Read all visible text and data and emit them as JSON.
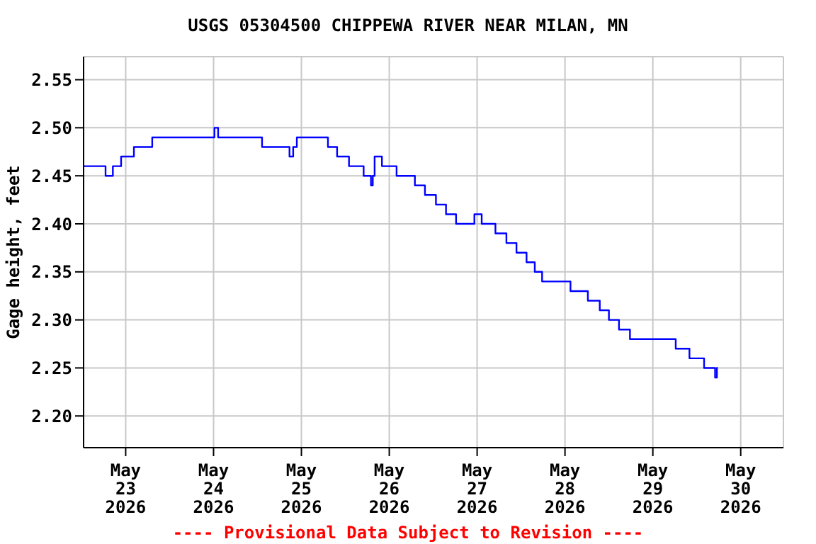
{
  "chart_data": {
    "type": "step",
    "title": "USGS 05304500 CHIPPEWA RIVER NEAR MILAN, MN",
    "ylabel": "Gage height, feet",
    "annotations": [
      "---- Provisional Data Subject to Revision ----"
    ],
    "x": [
      "2026-05-22T12:30",
      "2026-05-22T18:30",
      "2026-05-22T20:30",
      "2026-05-22T22:45",
      "2026-05-23T02:15",
      "2026-05-23T07:15",
      "2026-05-24T00:15",
      "2026-05-24T01:15",
      "2026-05-24T13:15",
      "2026-05-24T20:45",
      "2026-05-24T21:45",
      "2026-05-24T22:45",
      "2026-05-25T07:15",
      "2026-05-25T09:45",
      "2026-05-25T13:00",
      "2026-05-25T17:00",
      "2026-05-25T19:00",
      "2026-05-25T19:30",
      "2026-05-25T20:00",
      "2026-05-25T22:00",
      "2026-05-26T02:00",
      "2026-05-26T07:00",
      "2026-05-26T09:45",
      "2026-05-26T12:45",
      "2026-05-26T15:30",
      "2026-05-26T18:15",
      "2026-05-26T23:15",
      "2026-05-27T01:15",
      "2026-05-27T05:00",
      "2026-05-27T08:00",
      "2026-05-27T10:45",
      "2026-05-27T13:30",
      "2026-05-27T15:45",
      "2026-05-27T17:45",
      "2026-05-28T01:30",
      "2026-05-28T06:15",
      "2026-05-28T09:30",
      "2026-05-28T12:00",
      "2026-05-28T14:45",
      "2026-05-28T17:45",
      "2026-05-29T06:15",
      "2026-05-29T10:00",
      "2026-05-29T14:00",
      "2026-05-29T17:00",
      "2026-05-29T17:30",
      "2026-05-29T17:45"
    ],
    "series": [
      {
        "color": "#0000ff",
        "values": [
          2.46,
          2.45,
          2.46,
          2.47,
          2.48,
          2.49,
          2.5,
          2.49,
          2.48,
          2.47,
          2.48,
          2.49,
          2.48,
          2.47,
          2.46,
          2.45,
          2.44,
          2.45,
          2.47,
          2.46,
          2.45,
          2.44,
          2.43,
          2.42,
          2.41,
          2.4,
          2.41,
          2.4,
          2.39,
          2.38,
          2.37,
          2.36,
          2.35,
          2.34,
          2.33,
          2.32,
          2.31,
          2.3,
          2.29,
          2.28,
          2.27,
          2.26,
          2.25,
          2.24,
          2.25,
          2.25
        ]
      }
    ],
    "xlim": [
      "2026-05-22T12:30",
      "2026-05-30T11:40"
    ],
    "xticks": [
      {
        "value": "2026-05-23",
        "label": "May\n23\n2026"
      },
      {
        "value": "2026-05-24",
        "label": "May\n24\n2026"
      },
      {
        "value": "2026-05-25",
        "label": "May\n25\n2026"
      },
      {
        "value": "2026-05-26",
        "label": "May\n26\n2026"
      },
      {
        "value": "2026-05-27",
        "label": "May\n27\n2026"
      },
      {
        "value": "2026-05-28",
        "label": "May\n28\n2026"
      },
      {
        "value": "2026-05-29",
        "label": "May\n29\n2026"
      },
      {
        "value": "2026-05-30",
        "label": "May\n30\n2026"
      }
    ],
    "ylim": [
      2.167,
      2.574
    ],
    "yticks": [
      {
        "value": 2.2,
        "label": "2.20"
      },
      2.25,
      {
        "value": 2.3,
        "label": "2.30"
      },
      2.35,
      {
        "value": 2.4,
        "label": "2.40"
      },
      2.45,
      {
        "value": 2.5,
        "label": "2.50"
      },
      2.55
    ],
    "grid": true,
    "marker": "none",
    "line_style": "solid",
    "legend": false
  }
}
